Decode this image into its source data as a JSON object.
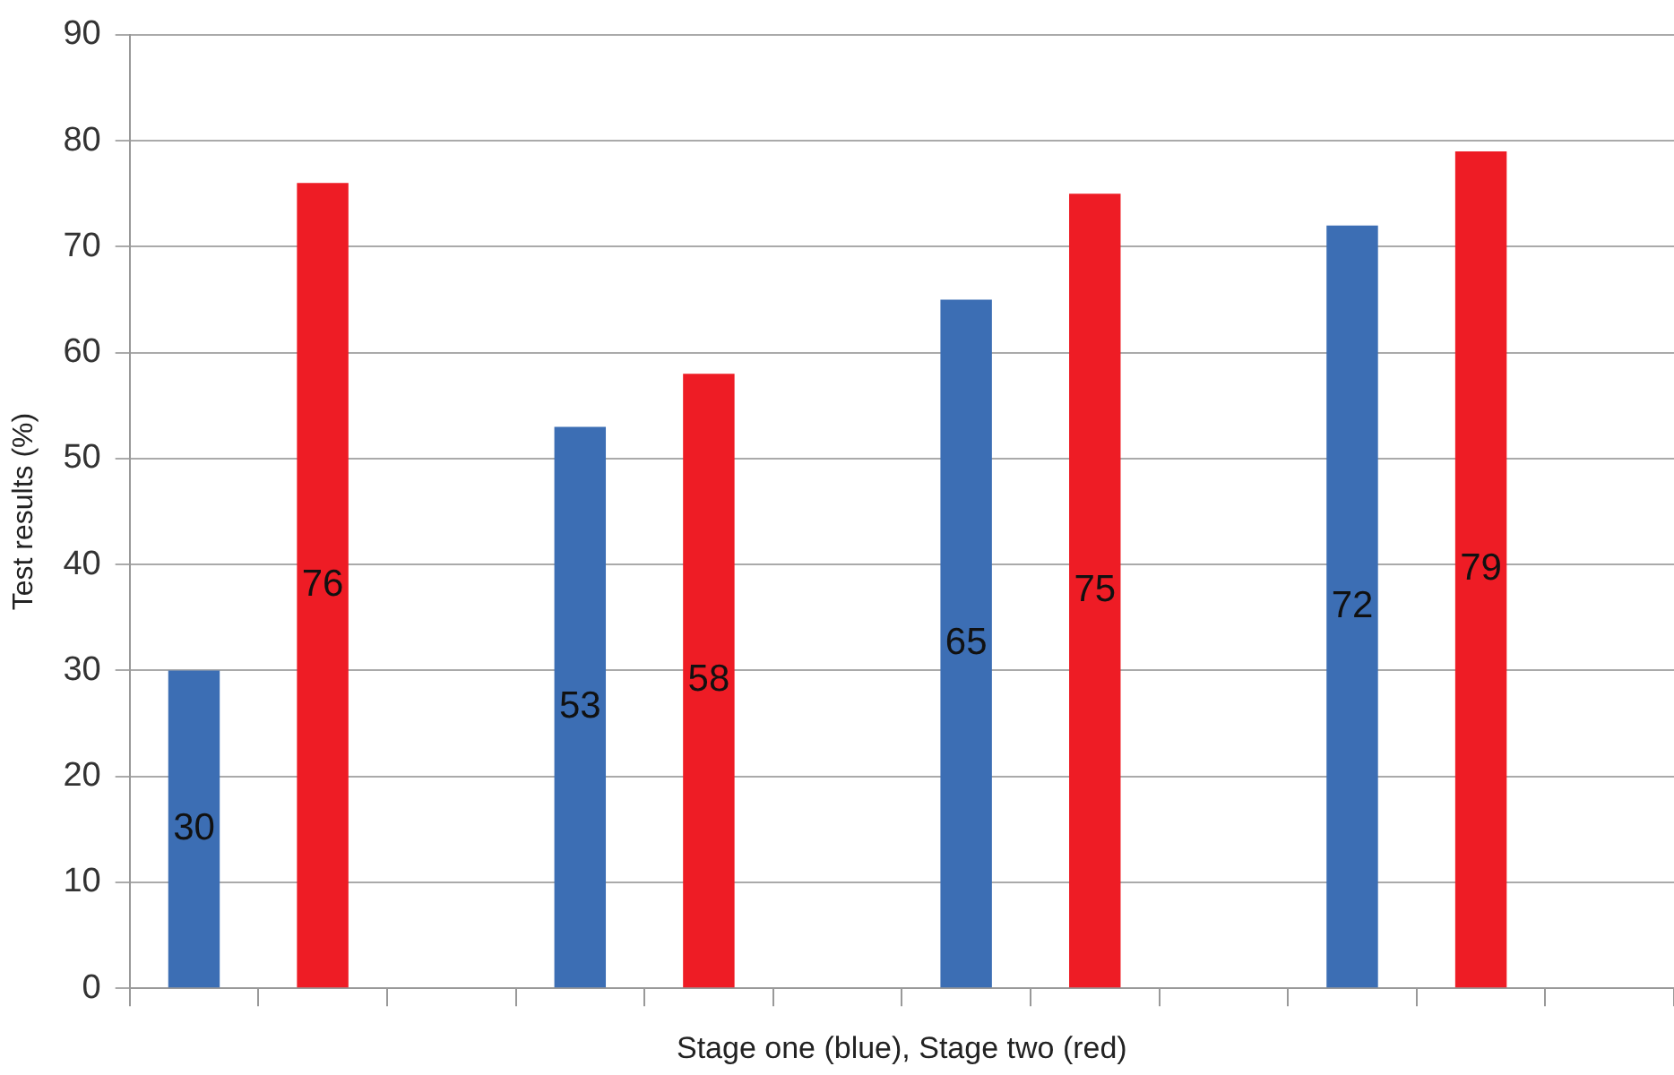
{
  "chart_data": {
    "type": "bar",
    "xlabel": "Stage one (blue), Stage two (red)",
    "ylabel": "Test results (%)",
    "categories": [
      null,
      null,
      null,
      null,
      null,
      null,
      null,
      null,
      null,
      null,
      null,
      null
    ],
    "series": [
      {
        "color": "#3c6eb4",
        "values": [
          30,
          null,
          null,
          53,
          null,
          null,
          65,
          null,
          null,
          72,
          null,
          null
        ]
      },
      {
        "color": "#ee1c25",
        "values": [
          null,
          76,
          null,
          null,
          58,
          null,
          null,
          75,
          null,
          null,
          79,
          null
        ]
      }
    ],
    "ylim": [
      0,
      90
    ],
    "yticks": [
      0,
      10,
      20,
      30,
      40,
      50,
      60,
      70,
      80,
      90
    ],
    "grid": "y",
    "legend": false,
    "data_labels": true
  }
}
